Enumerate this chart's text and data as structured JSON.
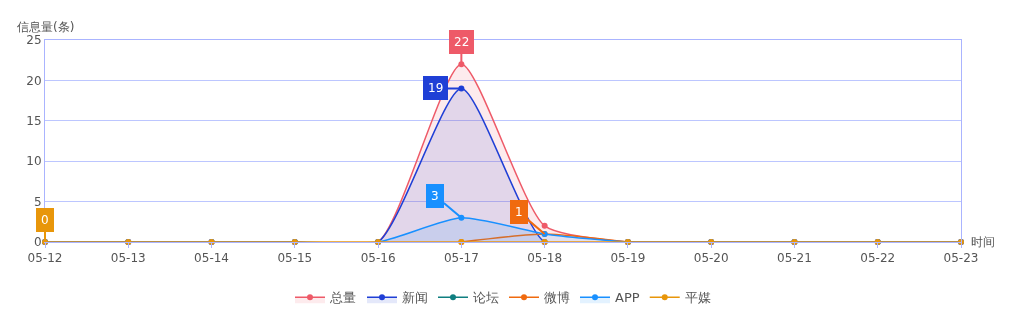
{
  "chart_data": {
    "type": "line",
    "ylabel": "信息量(条)",
    "xlabel": "时间",
    "categories": [
      "05-12",
      "05-13",
      "05-14",
      "05-15",
      "05-16",
      "05-17",
      "05-18",
      "05-19",
      "05-20",
      "05-21",
      "05-22",
      "05-23"
    ],
    "ylim": [
      0,
      25
    ],
    "yticks": [
      0,
      5,
      10,
      15,
      20,
      25
    ],
    "grid": "y",
    "legend": "bottom",
    "marker": "circle",
    "series": [
      {
        "name": "总量",
        "type": "area",
        "color": "#ee5a68",
        "values": [
          0,
          0,
          0,
          0,
          0,
          22,
          2,
          0,
          0,
          0,
          0,
          0
        ],
        "value_labels": [
          null,
          null,
          null,
          null,
          null,
          "22",
          null,
          null,
          null,
          null,
          null,
          null
        ]
      },
      {
        "name": "新闻",
        "type": "area",
        "color": "#1f3fd6",
        "values": [
          0,
          0,
          0,
          0,
          0,
          19,
          0,
          0,
          0,
          0,
          0,
          0
        ],
        "value_labels": [
          null,
          null,
          null,
          null,
          null,
          "19",
          null,
          null,
          null,
          null,
          null,
          null
        ]
      },
      {
        "name": "论坛",
        "color": "#0f7f80",
        "values": [
          null,
          null,
          null,
          null,
          null,
          null,
          null,
          null,
          null,
          null,
          null,
          null
        ]
      },
      {
        "name": "微博",
        "color": "#f06a0f",
        "values": [
          null,
          null,
          null,
          null,
          null,
          0,
          1,
          0,
          null,
          null,
          null,
          null
        ],
        "value_labels": [
          null,
          null,
          null,
          null,
          null,
          null,
          "1",
          null,
          null,
          null,
          null,
          null
        ]
      },
      {
        "name": "APP",
        "type": "area",
        "color": "#1890ff",
        "values": [
          0,
          0,
          0,
          0,
          0,
          3,
          1,
          0,
          0,
          0,
          0,
          0
        ],
        "value_labels": [
          null,
          null,
          null,
          null,
          null,
          "3",
          null,
          null,
          null,
          null,
          null,
          null
        ]
      },
      {
        "name": "平媒",
        "color": "#e8960a",
        "values": [
          0,
          0,
          0,
          0,
          0,
          0,
          0,
          0,
          0,
          0,
          0,
          0
        ],
        "value_labels": [
          "0",
          null,
          null,
          null,
          null,
          null,
          null,
          null,
          null,
          null,
          null,
          null
        ]
      }
    ]
  }
}
